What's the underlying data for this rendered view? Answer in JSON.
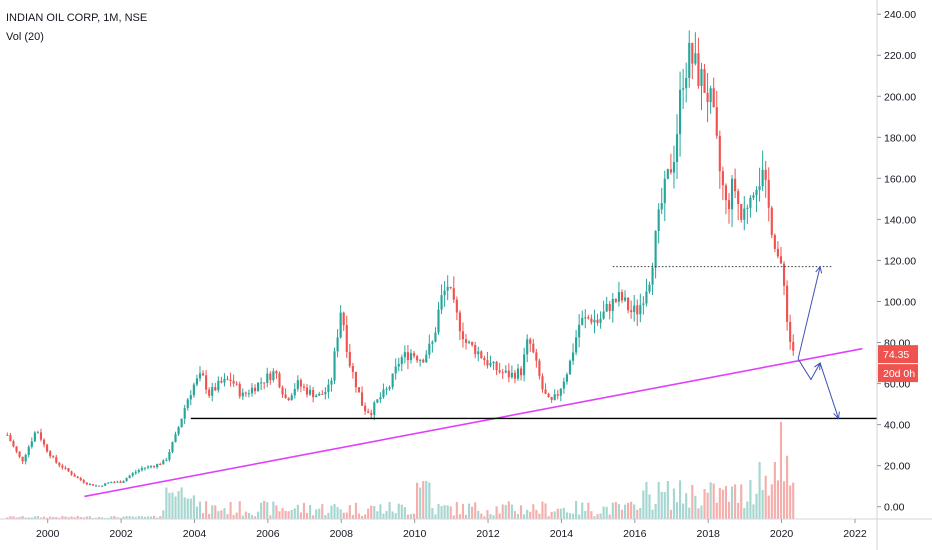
{
  "header": {
    "title": "INDIAN OIL CORP, 1M, NSE",
    "volume_label": "Vol (20)"
  },
  "colors": {
    "up": "#26a69a",
    "down": "#ef5350",
    "vol_up": "#a5d6d0",
    "vol_down": "#f5aeac",
    "trendline": "#e040fb",
    "support": "#000000",
    "projection": "#3f51b5",
    "badge": "#ef5350"
  },
  "chart_data": {
    "type": "candlestick",
    "x_axis": {
      "ticks": [
        "2000",
        "2002",
        "2004",
        "2006",
        "2008",
        "2010",
        "2012",
        "2014",
        "2016",
        "2018",
        "2020",
        "2022"
      ],
      "range": [
        1998.7,
        2022.6
      ]
    },
    "y_axis": {
      "ticks": [
        "0.00",
        "20.00",
        "40.00",
        "60.00",
        "80.00",
        "100.00",
        "120.00",
        "140.00",
        "160.00",
        "180.00",
        "200.00",
        "220.00",
        "240.00"
      ],
      "range": [
        -6,
        244
      ]
    },
    "volume_range": [
      0,
      57
    ],
    "price_path": [
      [
        1998.9,
        35
      ],
      [
        1999.1,
        28
      ],
      [
        1999.3,
        22
      ],
      [
        1999.5,
        30
      ],
      [
        1999.7,
        38
      ],
      [
        1999.9,
        30
      ],
      [
        2000.2,
        22
      ],
      [
        2000.5,
        18
      ],
      [
        2000.8,
        14
      ],
      [
        2001.1,
        11
      ],
      [
        2001.4,
        10
      ],
      [
        2001.7,
        12
      ],
      [
        2002.0,
        12
      ],
      [
        2002.3,
        16
      ],
      [
        2002.6,
        19
      ],
      [
        2002.9,
        20
      ],
      [
        2003.2,
        22
      ],
      [
        2003.5,
        35
      ],
      [
        2003.8,
        52
      ],
      [
        2004.0,
        60
      ],
      [
        2004.2,
        64
      ],
      [
        2004.4,
        55
      ],
      [
        2004.7,
        60
      ],
      [
        2005.0,
        62
      ],
      [
        2005.3,
        54
      ],
      [
        2005.6,
        58
      ],
      [
        2005.9,
        62
      ],
      [
        2006.2,
        66
      ],
      [
        2006.5,
        52
      ],
      [
        2006.8,
        60
      ],
      [
        2007.1,
        56
      ],
      [
        2007.4,
        54
      ],
      [
        2007.7,
        58
      ],
      [
        2008.0,
        98
      ],
      [
        2008.2,
        72
      ],
      [
        2008.4,
        60
      ],
      [
        2008.6,
        48
      ],
      [
        2008.8,
        46
      ],
      [
        2009.0,
        52
      ],
      [
        2009.3,
        58
      ],
      [
        2009.6,
        72
      ],
      [
        2009.9,
        75
      ],
      [
        2010.2,
        72
      ],
      [
        2010.5,
        80
      ],
      [
        2010.7,
        100
      ],
      [
        2010.9,
        108
      ],
      [
        2011.1,
        95
      ],
      [
        2011.4,
        80
      ],
      [
        2011.7,
        76
      ],
      [
        2012.0,
        70
      ],
      [
        2012.3,
        66
      ],
      [
        2012.6,
        64
      ],
      [
        2012.9,
        66
      ],
      [
        2013.1,
        82
      ],
      [
        2013.3,
        70
      ],
      [
        2013.5,
        56
      ],
      [
        2013.7,
        50
      ],
      [
        2013.9,
        55
      ],
      [
        2014.2,
        68
      ],
      [
        2014.5,
        90
      ],
      [
        2014.8,
        92
      ],
      [
        2015.0,
        90
      ],
      [
        2015.3,
        98
      ],
      [
        2015.6,
        102
      ],
      [
        2015.9,
        95
      ],
      [
        2016.1,
        96
      ],
      [
        2016.4,
        112
      ],
      [
        2016.7,
        145
      ],
      [
        2016.9,
        160
      ],
      [
        2017.1,
        175
      ],
      [
        2017.3,
        210
      ],
      [
        2017.5,
        220
      ],
      [
        2017.7,
        212
      ],
      [
        2017.9,
        205
      ],
      [
        2018.1,
        195
      ],
      [
        2018.3,
        165
      ],
      [
        2018.5,
        145
      ],
      [
        2018.7,
        158
      ],
      [
        2018.9,
        140
      ],
      [
        2019.1,
        150
      ],
      [
        2019.3,
        160
      ],
      [
        2019.5,
        160
      ],
      [
        2019.7,
        140
      ],
      [
        2019.9,
        122
      ],
      [
        2020.1,
        104
      ],
      [
        2020.2,
        82
      ],
      [
        2020.35,
        75
      ]
    ],
    "last_price": "74.35",
    "countdown": "20d 0h",
    "annotations": [
      {
        "kind": "trendline",
        "from": [
          2001.0,
          5
        ],
        "to": [
          2022.2,
          77
        ]
      },
      {
        "kind": "horizontal",
        "price": 43,
        "from_x": 2003.9
      },
      {
        "kind": "horizontal-dotted",
        "price": 117,
        "from_x": 2015.4,
        "to_x": 2021.4
      },
      {
        "kind": "arrow-path",
        "points": [
          [
            2020.45,
            72
          ],
          [
            2021.05,
            117
          ]
        ]
      },
      {
        "kind": "arrow-path",
        "points": [
          [
            2020.45,
            72
          ],
          [
            2020.8,
            62
          ],
          [
            2021.05,
            70
          ]
        ]
      },
      {
        "kind": "arrow-path",
        "points": [
          [
            2021.05,
            70
          ],
          [
            2021.55,
            43
          ]
        ]
      }
    ]
  }
}
